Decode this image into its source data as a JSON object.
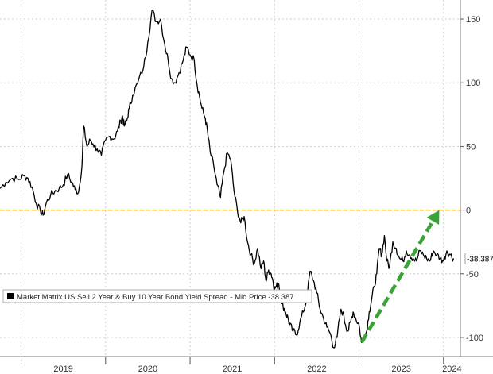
{
  "chart_data": {
    "type": "line",
    "title": "",
    "xlabel": "",
    "ylabel": "",
    "ylim": [
      -115,
      165
    ],
    "xlim": [
      2018.75,
      2024.2
    ],
    "y_ticks": [
      -100,
      -50,
      0,
      50,
      100,
      150
    ],
    "y_tick_labels": [
      "-100",
      "-50",
      "0",
      "50",
      "100",
      "150"
    ],
    "x_ticks": [
      2019,
      2020,
      2021,
      2022,
      2023,
      2024
    ],
    "x_tick_labels": [
      "2019",
      "2020",
      "2021",
      "2022",
      "2023",
      "2024"
    ],
    "grid": true,
    "legend_position": "bottom-left",
    "legend_label": "Market Matrix US Sell 2 Year & Buy 10 Year Bond Yield Spread - Mid Price  -38.387",
    "last_value_label": "-38.387",
    "reference_line": {
      "y": 0,
      "color": "#e6b422"
    },
    "trend_arrow": {
      "from": [
        2023.03,
        -104
      ],
      "to": [
        2023.95,
        0
      ],
      "color": "#3aa335"
    },
    "colors": {
      "series": "#000000",
      "grid": "#cccccc",
      "zero_line": "#e6b422",
      "arrow": "#3aa335",
      "last_value_box": "#ffffff"
    },
    "series": [
      {
        "name": "Market Matrix US Sell 2 Year & Buy 10 Year Bond Yield Spread - Mid Price",
        "x": [
          2018.75,
          2018.82,
          2018.9,
          2018.97,
          2019.03,
          2019.08,
          2019.13,
          2019.18,
          2019.23,
          2019.26,
          2019.3,
          2019.35,
          2019.4,
          2019.45,
          2019.5,
          2019.55,
          2019.6,
          2019.64,
          2019.68,
          2019.72,
          2019.74,
          2019.78,
          2019.82,
          2019.85,
          2019.9,
          2019.95,
          2020.0,
          2020.05,
          2020.1,
          2020.14,
          2020.18,
          2020.2,
          2020.22,
          2020.25,
          2020.28,
          2020.32,
          2020.38,
          2020.45,
          2020.5,
          2020.55,
          2020.6,
          2020.65,
          2020.7,
          2020.74,
          2020.78,
          2020.82,
          2020.87,
          2020.92,
          2020.96,
          2021.0,
          2021.05,
          2021.08,
          2021.11,
          2021.14,
          2021.18,
          2021.21,
          2021.24,
          2021.28,
          2021.32,
          2021.36,
          2021.4,
          2021.44,
          2021.48,
          2021.52,
          2021.56,
          2021.6,
          2021.64,
          2021.68,
          2021.72,
          2021.76,
          2021.8,
          2021.84,
          2021.87,
          2021.9,
          2021.93,
          2021.96,
          2021.98,
          2022.0,
          2022.02,
          2022.05,
          2022.08,
          2022.1,
          2022.13,
          2022.16,
          2022.18,
          2022.22,
          2022.26,
          2022.3,
          2022.34,
          2022.38,
          2022.42,
          2022.46,
          2022.5,
          2022.54,
          2022.58,
          2022.62,
          2022.66,
          2022.7,
          2022.74,
          2022.78,
          2022.81,
          2022.84,
          2022.87,
          2022.9,
          2022.93,
          2022.96,
          2023.0,
          2023.03,
          2023.06,
          2023.09,
          2023.12,
          2023.15,
          2023.18,
          2023.21,
          2023.24,
          2023.27,
          2023.3,
          2023.33,
          2023.36,
          2023.4,
          2023.44,
          2023.48,
          2023.52,
          2023.56,
          2023.6,
          2023.64,
          2023.68,
          2023.72,
          2023.76,
          2023.8,
          2023.84,
          2023.88,
          2023.92,
          2023.96,
          2024.0,
          2024.04,
          2024.08,
          2024.12
        ],
        "y": [
          17,
          22,
          25,
          24,
          27,
          25,
          18,
          5,
          -1,
          -4,
          6,
          12,
          15,
          17,
          20,
          28,
          22,
          16,
          14,
          35,
          66,
          50,
          55,
          52,
          48,
          43,
          55,
          58,
          56,
          62,
          70,
          74,
          66,
          70,
          80,
          90,
          100,
          112,
          132,
          157,
          148,
          150,
          130,
          118,
          103,
          100,
          108,
          118,
          128,
          122,
          118,
          100,
          90,
          80,
          72,
          60,
          45,
          35,
          20,
          10,
          30,
          45,
          40,
          15,
          0,
          -10,
          -5,
          -25,
          -35,
          -42,
          -30,
          -46,
          -40,
          -56,
          -47,
          -50,
          -55,
          -62,
          -60,
          -58,
          -70,
          -75,
          -80,
          -85,
          -90,
          -95,
          -98,
          -88,
          -80,
          -70,
          -48,
          -55,
          -65,
          -78,
          -85,
          -92,
          -97,
          -108,
          -100,
          -80,
          -80,
          -90,
          -95,
          -88,
          -80,
          -85,
          -90,
          -104,
          -100,
          -95,
          -80,
          -70,
          -60,
          -50,
          -30,
          -35,
          -20,
          -40,
          -45,
          -25,
          -30,
          -38,
          -40,
          -32,
          -35,
          -38,
          -40,
          -32,
          -35,
          -38,
          -40,
          -32,
          -35,
          -38,
          -40,
          -32,
          -35,
          -38
        ]
      }
    ]
  }
}
